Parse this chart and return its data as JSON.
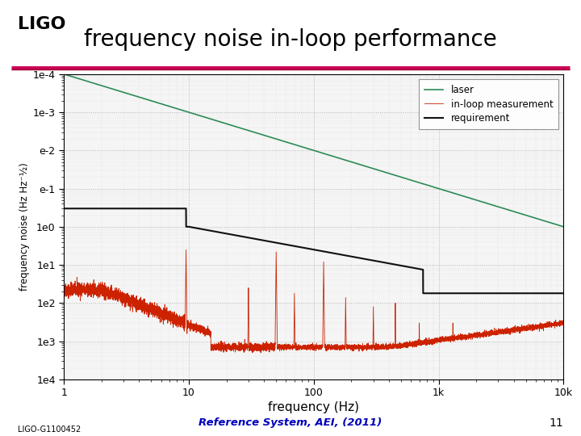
{
  "title": "frequency noise in-loop performance",
  "title_fontsize": 20,
  "xlabel": "frequency (Hz)",
  "ylabel": "frequency noise (Hz Hz⁻½)",
  "xlim_log": [
    1,
    10000
  ],
  "ylim_log": [
    0.0001,
    10000.0
  ],
  "background_color": "#ffffff",
  "plot_bg_color": "#f5f5f5",
  "grid_color": "#b0b0b0",
  "footer_text": "Reference System, AEI, (2011)",
  "footer_color": "#0000bb",
  "ligo_id": "LIGO-G1100452",
  "page_num": "11",
  "laser_color": "#2e8b57",
  "measurement_color": "#cc2200",
  "requirement_color": "#111111",
  "header_line_color": "#cc0055",
  "header_line_color2": "#990033",
  "legend_entries": [
    "laser",
    "in-loop measurement",
    "requirement"
  ],
  "ytick_labels": [
    "1e4",
    "1e3",
    "1e2",
    "1e1",
    "1e0",
    "e-1",
    "e-2",
    "1e-3",
    "1e-4"
  ],
  "ytick_vals": [
    10000,
    1000,
    100,
    10,
    1,
    0.1,
    0.01,
    0.001,
    0.0001
  ]
}
